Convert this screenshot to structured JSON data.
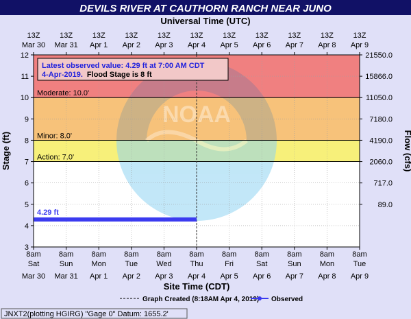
{
  "chart_data": {
    "type": "line",
    "title": "DEVILS RIVER AT CAUTHORN RANCH NEAR JUNO",
    "top_axis_title": "Universal Time (UTC)",
    "xlabel": "Site Time (CDT)",
    "ylabel": "Stage (ft)",
    "y2label": "Flow (cfs)",
    "ylim": [
      3,
      12
    ],
    "y_ticks": [
      "3",
      "4",
      "5",
      "6",
      "7",
      "8",
      "9",
      "10",
      "11",
      "12"
    ],
    "flow_ticks": [
      {
        "stage": 12,
        "label": "21550.0"
      },
      {
        "stage": 11,
        "label": "15866.0"
      },
      {
        "stage": 10,
        "label": "11050.0"
      },
      {
        "stage": 9,
        "label": "7180.0"
      },
      {
        "stage": 8,
        "label": "4190.0"
      },
      {
        "stage": 7,
        "label": "2060.0"
      },
      {
        "stage": 6,
        "label": "717.0"
      },
      {
        "stage": 5,
        "label": "89.0"
      }
    ],
    "utc_ticks": [
      [
        "13Z",
        "Mar 30"
      ],
      [
        "13Z",
        "Mar 31"
      ],
      [
        "13Z",
        "Apr 1"
      ],
      [
        "13Z",
        "Apr 2"
      ],
      [
        "13Z",
        "Apr 3"
      ],
      [
        "13Z",
        "Apr 4"
      ],
      [
        "13Z",
        "Apr 5"
      ],
      [
        "13Z",
        "Apr 6"
      ],
      [
        "13Z",
        "Apr 7"
      ],
      [
        "13Z",
        "Apr 8"
      ],
      [
        "13Z",
        "Apr 9"
      ]
    ],
    "cdt_ticks": [
      [
        "8am",
        "Sat",
        "Mar 30"
      ],
      [
        "8am",
        "Sun",
        "Mar 31"
      ],
      [
        "8am",
        "Mon",
        "Apr 1"
      ],
      [
        "8am",
        "Tue",
        "Apr 2"
      ],
      [
        "8am",
        "Wed",
        "Apr 3"
      ],
      [
        "8am",
        "Thu",
        "Apr 4"
      ],
      [
        "8am",
        "Fri",
        "Apr 5"
      ],
      [
        "8am",
        "Sat",
        "Apr 6"
      ],
      [
        "8am",
        "Sun",
        "Apr 7"
      ],
      [
        "8am",
        "Mon",
        "Apr 8"
      ],
      [
        "8am",
        "Tue",
        "Apr 9"
      ]
    ],
    "flood_bands": [
      {
        "from": 10,
        "to": 12,
        "color": "#f08080"
      },
      {
        "from": 8,
        "to": 10,
        "color": "#f7c27a"
      },
      {
        "from": 7,
        "to": 8,
        "color": "#f7f07a"
      },
      {
        "from": 3,
        "to": 7,
        "color": "#ffffff"
      }
    ],
    "stage_labels": [
      {
        "value": 10,
        "text": "Moderate: 10.0'"
      },
      {
        "value": 8,
        "text": "Minor: 8.0'"
      },
      {
        "value": 7,
        "text": "Action: 7.0'"
      }
    ],
    "series": [
      {
        "name": "Observed",
        "color": "#3b3bf0",
        "x": [
          0,
          5
        ],
        "y": [
          4.29,
          4.29
        ]
      }
    ],
    "current_marker_x": 5,
    "last_value_label": "4.29 ft",
    "info_box": {
      "line1": "Latest observed value: 4.29 ft at 7:00 AM CDT",
      "line2_date": "4-Apr-2019.",
      "line2_flood": "Flood Stage is 8 ft"
    },
    "legend": {
      "graph_created": "Graph Created (8:18AM Apr 4, 2019)",
      "observed": "Observed"
    },
    "footer": "JNXT2(plotting HGIRG) \"Gage 0\" Datum: 1655.2'",
    "watermark": "NOAA"
  }
}
